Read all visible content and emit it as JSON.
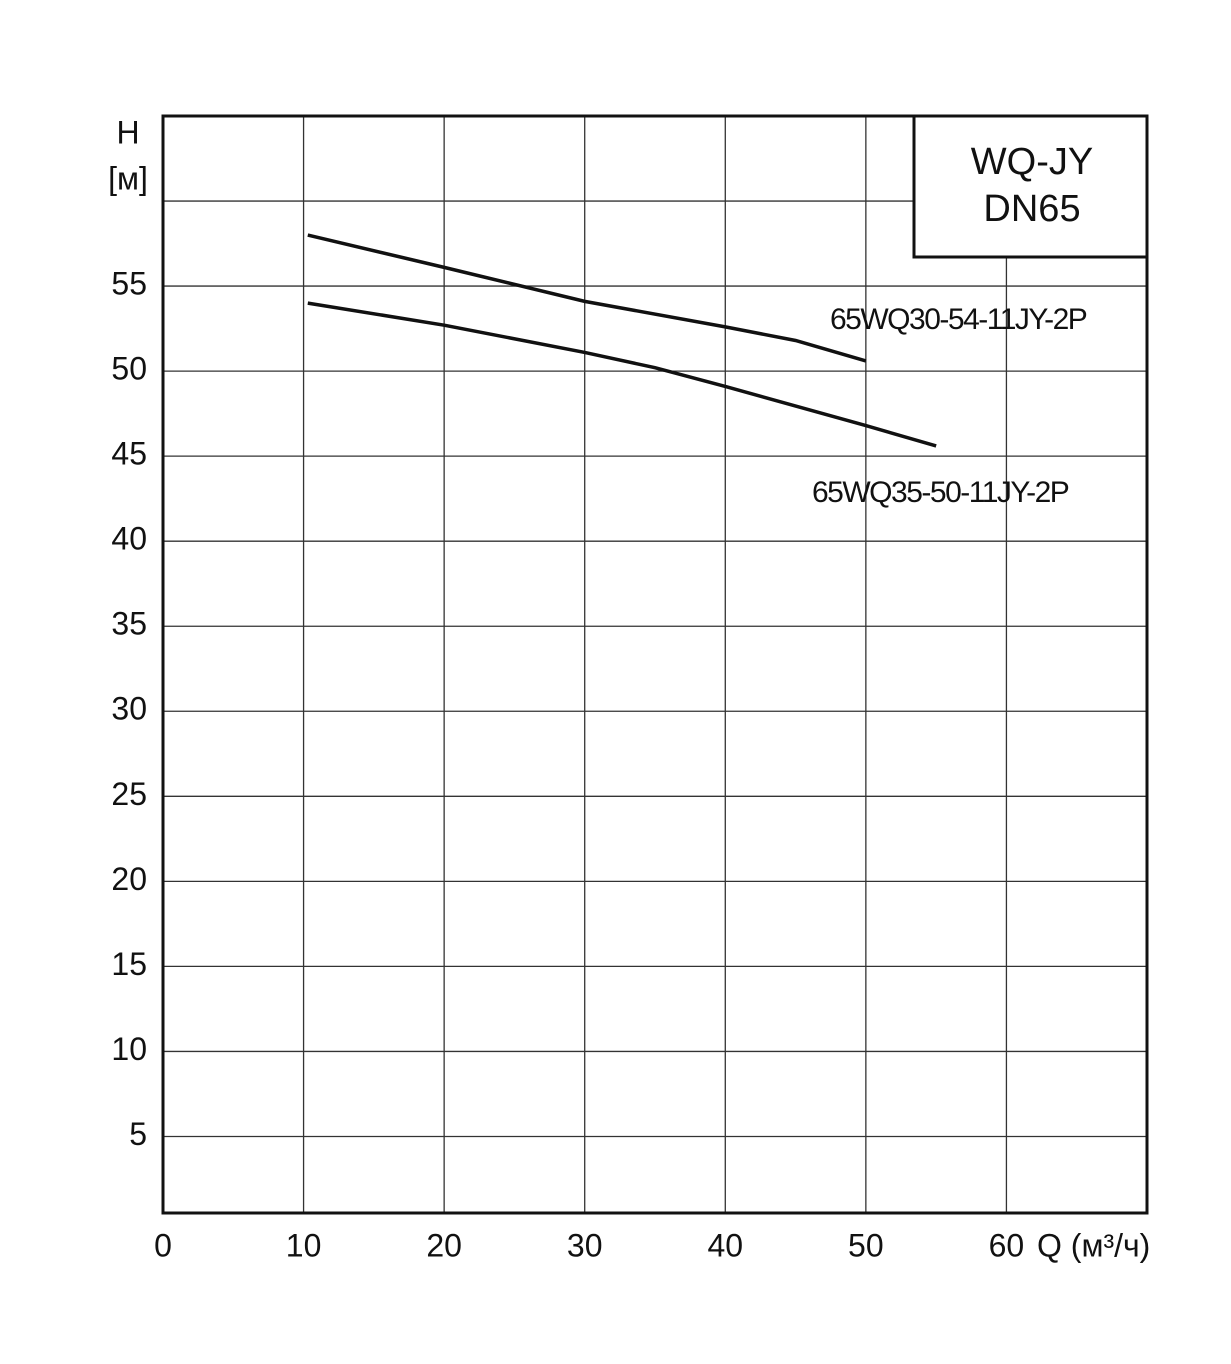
{
  "chart_data": {
    "type": "line",
    "title": [
      "WQ-JY",
      "DN65"
    ],
    "y_label": [
      "H",
      "[м]"
    ],
    "x_label": "Q (м³/ч)",
    "xlim": [
      0,
      70
    ],
    "ylim": [
      0.5,
      65
    ],
    "xticks": [
      0,
      10,
      20,
      30,
      40,
      50,
      60
    ],
    "yticks": [
      5,
      10,
      15,
      20,
      25,
      30,
      35,
      40,
      45,
      50,
      55
    ],
    "xgrid": [
      10,
      20,
      30,
      40,
      50,
      60
    ],
    "ygrid": [
      5,
      10,
      15,
      20,
      25,
      30,
      35,
      40,
      45,
      50,
      55,
      60
    ],
    "grid": true,
    "series": [
      {
        "name": "65WQ30-54-11JY-2P",
        "color": "#111111",
        "x": [
          10.3,
          20,
          30,
          40,
          45,
          50
        ],
        "values": [
          58.0,
          56.1,
          54.1,
          52.6,
          51.8,
          50.6
        ]
      },
      {
        "name": "65WQ35-50-11JY-2P",
        "color": "#111111",
        "x": [
          10.3,
          20,
          30,
          35,
          40,
          50,
          55
        ],
        "values": [
          54.0,
          52.7,
          51.1,
          50.2,
          49.1,
          46.8,
          45.6
        ]
      }
    ]
  }
}
